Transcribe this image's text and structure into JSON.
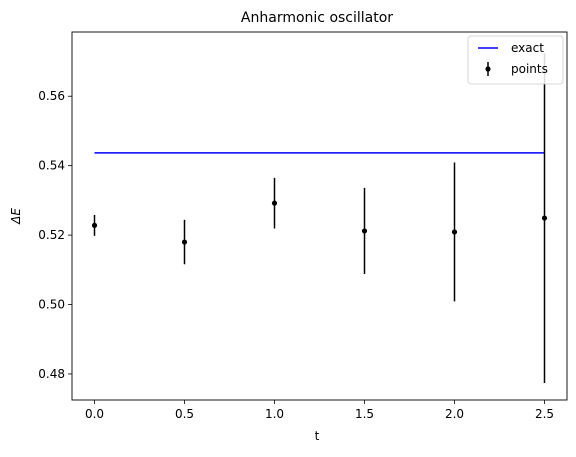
{
  "chart_data": {
    "type": "scatter",
    "title": "Anharmonic oscillator",
    "xlabel": "t",
    "ylabel": "ΔE",
    "xlim": [
      -0.125,
      2.625
    ],
    "ylim": [
      0.4725,
      0.5785
    ],
    "xticks": [
      0.0,
      0.5,
      1.0,
      1.5,
      2.0,
      2.5
    ],
    "xtick_labels": [
      "0.0",
      "0.5",
      "1.0",
      "1.5",
      "2.0",
      "2.5"
    ],
    "yticks": [
      0.48,
      0.5,
      0.52,
      0.54,
      0.56
    ],
    "ytick_labels": [
      "0.48",
      "0.50",
      "0.52",
      "0.54",
      "0.56"
    ],
    "grid": false,
    "legend_position": "upper-right",
    "series": [
      {
        "name": "exact",
        "kind": "line",
        "color": "#0000ff",
        "x": [
          0.0,
          2.5
        ],
        "y": [
          0.5437,
          0.5437
        ]
      },
      {
        "name": "points",
        "kind": "errorbar",
        "color": "#000000",
        "x": [
          0.0,
          0.5,
          1.0,
          1.5,
          2.0,
          2.5
        ],
        "y": [
          0.5228,
          0.518,
          0.5292,
          0.5212,
          0.5209,
          0.5249
        ],
        "yerr": [
          0.003,
          0.0064,
          0.0073,
          0.0124,
          0.02,
          0.0475
        ]
      }
    ]
  }
}
